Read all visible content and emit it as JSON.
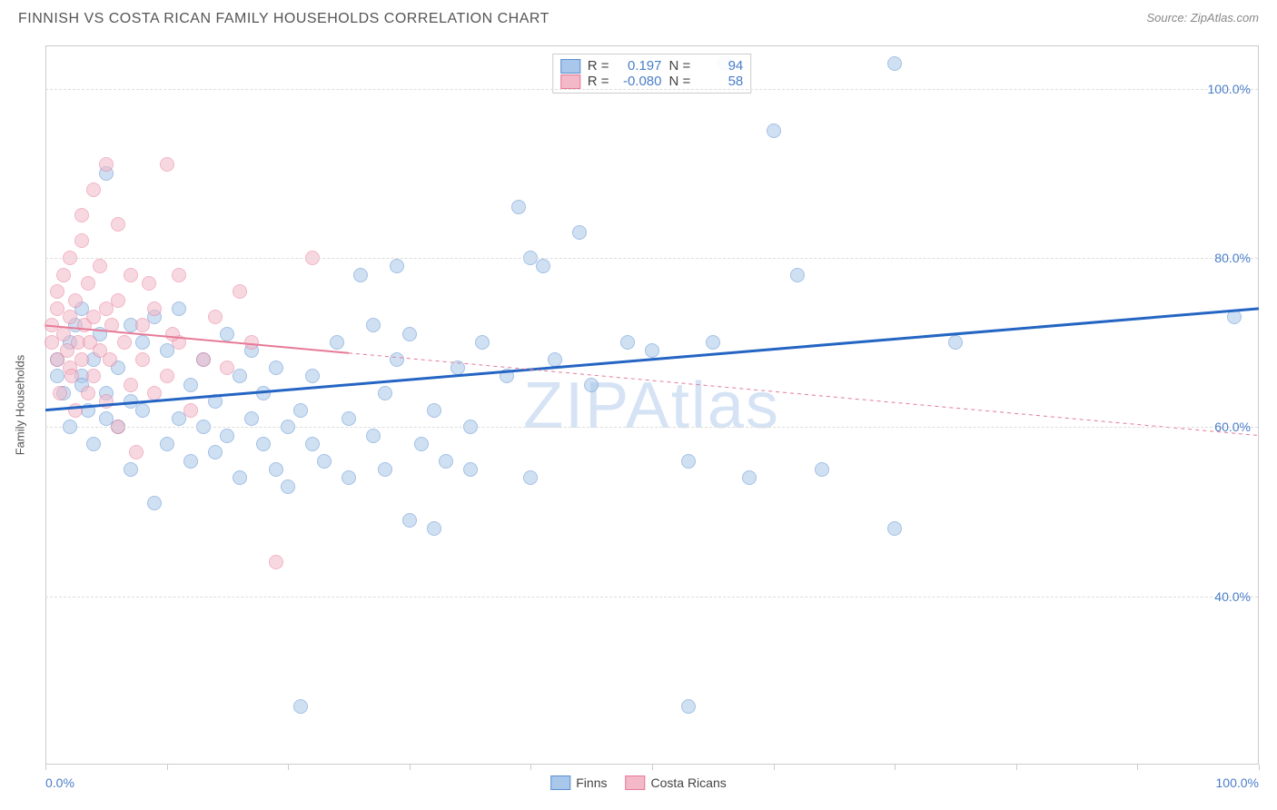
{
  "title": "FINNISH VS COSTA RICAN FAMILY HOUSEHOLDS CORRELATION CHART",
  "source_label": "Source: ZipAtlas.com",
  "watermark": "ZIPAtlas",
  "ylabel": "Family Households",
  "xlabel_min": "0.0%",
  "xlabel_max": "100.0%",
  "chart": {
    "type": "scatter",
    "background_color": "#ffffff",
    "grid_color": "#dddddd",
    "axis_color": "#cccccc",
    "text_color": "#555555",
    "value_color": "#4a7ec9",
    "xlim": [
      0,
      100
    ],
    "ylim": [
      20,
      105
    ],
    "ytick_positions": [
      40,
      60,
      80,
      100
    ],
    "ytick_labels": [
      "40.0%",
      "60.0%",
      "80.0%",
      "100.0%"
    ],
    "xtick_positions": [
      0,
      10,
      20,
      30,
      40,
      50,
      60,
      70,
      80,
      90,
      100
    ],
    "point_radius": 8,
    "point_opacity": 0.55,
    "series": [
      {
        "name": "Finns",
        "fill": "#a9c7ea",
        "stroke": "#5b8fd0",
        "trend_color": "#2465c3",
        "trend_width": 3,
        "trend_dash_solid": true,
        "trend": {
          "x1": 0,
          "y1": 62,
          "x2": 100,
          "y2": 74
        },
        "R": "0.197",
        "N": "94",
        "points": [
          [
            1,
            66
          ],
          [
            1,
            68
          ],
          [
            1.5,
            64
          ],
          [
            2,
            70
          ],
          [
            2,
            60
          ],
          [
            2.5,
            72
          ],
          [
            3,
            66
          ],
          [
            3,
            74
          ],
          [
            3.5,
            62
          ],
          [
            4,
            68
          ],
          [
            4,
            58
          ],
          [
            4.5,
            71
          ],
          [
            5,
            64
          ],
          [
            5,
            90
          ],
          [
            6,
            67
          ],
          [
            6,
            60
          ],
          [
            7,
            72
          ],
          [
            7,
            55
          ],
          [
            8,
            70
          ],
          [
            8,
            62
          ],
          [
            9,
            73
          ],
          [
            9,
            51
          ],
          [
            10,
            69
          ],
          [
            10,
            58
          ],
          [
            11,
            74
          ],
          [
            11,
            61
          ],
          [
            12,
            65
          ],
          [
            12,
            56
          ],
          [
            13,
            68
          ],
          [
            13,
            60
          ],
          [
            14,
            63
          ],
          [
            14,
            57
          ],
          [
            15,
            71
          ],
          [
            15,
            59
          ],
          [
            16,
            66
          ],
          [
            16,
            54
          ],
          [
            17,
            69
          ],
          [
            17,
            61
          ],
          [
            18,
            58
          ],
          [
            18,
            64
          ],
          [
            19,
            55
          ],
          [
            19,
            67
          ],
          [
            20,
            60
          ],
          [
            20,
            53
          ],
          [
            21,
            62
          ],
          [
            21,
            27
          ],
          [
            22,
            58
          ],
          [
            22,
            66
          ],
          [
            23,
            56
          ],
          [
            24,
            70
          ],
          [
            25,
            61
          ],
          [
            25,
            54
          ],
          [
            26,
            78
          ],
          [
            27,
            59
          ],
          [
            27,
            72
          ],
          [
            28,
            55
          ],
          [
            28,
            64
          ],
          [
            29,
            68
          ],
          [
            29,
            79
          ],
          [
            30,
            49
          ],
          [
            30,
            71
          ],
          [
            31,
            58
          ],
          [
            32,
            48
          ],
          [
            32,
            62
          ],
          [
            33,
            56
          ],
          [
            34,
            67
          ],
          [
            35,
            55
          ],
          [
            35,
            60
          ],
          [
            36,
            70
          ],
          [
            38,
            66
          ],
          [
            39,
            86
          ],
          [
            40,
            54
          ],
          [
            40,
            80
          ],
          [
            41,
            79
          ],
          [
            42,
            68
          ],
          [
            44,
            83
          ],
          [
            45,
            65
          ],
          [
            48,
            70
          ],
          [
            50,
            69
          ],
          [
            53,
            56
          ],
          [
            53,
            27
          ],
          [
            55,
            70
          ],
          [
            56,
            103
          ],
          [
            58,
            54
          ],
          [
            60,
            95
          ],
          [
            62,
            78
          ],
          [
            64,
            55
          ],
          [
            70,
            103
          ],
          [
            70,
            48
          ],
          [
            75,
            70
          ],
          [
            98,
            73
          ],
          [
            3,
            65
          ],
          [
            5,
            61
          ],
          [
            7,
            63
          ]
        ]
      },
      {
        "name": "Costa Ricans",
        "fill": "#f4b9c8",
        "stroke": "#e77a97",
        "trend_color": "#e77a97",
        "trend_width": 2,
        "trend_dash_solid": false,
        "trend": {
          "x1": 0,
          "y1": 72,
          "x2": 100,
          "y2": 59
        },
        "trend_solid_until": 25,
        "R": "-0.080",
        "N": "58",
        "points": [
          [
            0.5,
            70
          ],
          [
            0.5,
            72
          ],
          [
            1,
            68
          ],
          [
            1,
            74
          ],
          [
            1,
            76
          ],
          [
            1.2,
            64
          ],
          [
            1.5,
            71
          ],
          [
            1.5,
            78
          ],
          [
            1.8,
            69
          ],
          [
            2,
            73
          ],
          [
            2,
            67
          ],
          [
            2,
            80
          ],
          [
            2.2,
            66
          ],
          [
            2.5,
            75
          ],
          [
            2.5,
            62
          ],
          [
            2.7,
            70
          ],
          [
            3,
            68
          ],
          [
            3,
            82
          ],
          [
            3,
            85
          ],
          [
            3.2,
            72
          ],
          [
            3.5,
            64
          ],
          [
            3.5,
            77
          ],
          [
            3.7,
            70
          ],
          [
            4,
            66
          ],
          [
            4,
            73
          ],
          [
            4,
            88
          ],
          [
            4.5,
            69
          ],
          [
            4.5,
            79
          ],
          [
            5,
            63
          ],
          [
            5,
            74
          ],
          [
            5,
            91
          ],
          [
            5.3,
            68
          ],
          [
            5.5,
            72
          ],
          [
            6,
            60
          ],
          [
            6,
            75
          ],
          [
            6,
            84
          ],
          [
            6.5,
            70
          ],
          [
            7,
            65
          ],
          [
            7,
            78
          ],
          [
            7.5,
            57
          ],
          [
            8,
            68
          ],
          [
            8,
            72
          ],
          [
            8.5,
            77
          ],
          [
            9,
            64
          ],
          [
            9,
            74
          ],
          [
            10,
            66
          ],
          [
            10,
            91
          ],
          [
            11,
            70
          ],
          [
            11,
            78
          ],
          [
            12,
            62
          ],
          [
            13,
            68
          ],
          [
            14,
            73
          ],
          [
            15,
            67
          ],
          [
            16,
            76
          ],
          [
            17,
            70
          ],
          [
            19,
            44
          ],
          [
            22,
            80
          ],
          [
            10.5,
            71
          ]
        ]
      }
    ]
  },
  "bottom_legend": [
    {
      "label": "Finns",
      "fill": "#a9c7ea",
      "stroke": "#5b8fd0"
    },
    {
      "label": "Costa Ricans",
      "fill": "#f4b9c8",
      "stroke": "#e77a97"
    }
  ]
}
